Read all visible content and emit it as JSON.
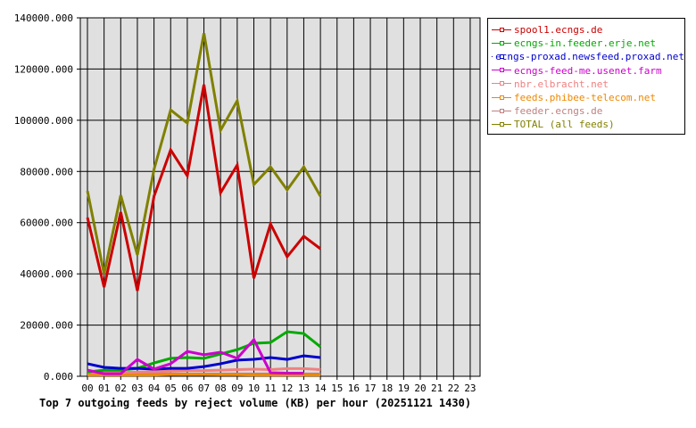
{
  "chart_data": {
    "type": "line",
    "title": "Top 7 outgoing feeds by reject volume (KB) per hour (20251121 1430)",
    "xlabel": "",
    "ylabel": "",
    "x": [
      "00",
      "01",
      "02",
      "03",
      "04",
      "05",
      "06",
      "07",
      "08",
      "09",
      "10",
      "11",
      "12",
      "13",
      "14",
      "15",
      "16",
      "17",
      "18",
      "19",
      "20",
      "21",
      "22",
      "23"
    ],
    "ylim": [
      0,
      140000
    ],
    "yticks": [
      "0.000",
      "20000.000",
      "40000.000",
      "60000.000",
      "80000.000",
      "100000.000",
      "120000.000",
      "140000.000"
    ],
    "grid": true,
    "legend_position": "right",
    "series": [
      {
        "name": "spool1.ecngs.de",
        "color": "#cc0000",
        "values": [
          62000,
          34800,
          64100,
          33400,
          70300,
          88400,
          78300,
          113900,
          71700,
          82500,
          38300,
          59500,
          46700,
          54700,
          49800
        ]
      },
      {
        "name": "ecngs-in.feeder.erje.net",
        "color": "#00aa00",
        "values": [
          1700,
          2400,
          2400,
          3100,
          5200,
          7000,
          7300,
          7000,
          8700,
          10400,
          12900,
          13200,
          17400,
          16700,
          11500
        ]
      },
      {
        "name": "ecngs-proxad.newsfeed.proxad.net",
        "color": "#0000cc",
        "values": [
          4900,
          3500,
          3100,
          3100,
          2800,
          3100,
          3100,
          3800,
          4900,
          6300,
          6600,
          7300,
          6600,
          8000,
          7300
        ]
      },
      {
        "name": "ecngs-feed-me.usenet.farm",
        "color": "#cc00cc",
        "values": [
          2400,
          1000,
          1000,
          6600,
          2800,
          4900,
          9700,
          8400,
          9400,
          7000,
          14300,
          1400,
          1200,
          1200,
          null
        ]
      },
      {
        "name": "nbr.elbracht.net",
        "color": "#f08080",
        "values": [
          1500,
          1500,
          1500,
          1600,
          1800,
          2000,
          2200,
          2200,
          2400,
          2600,
          2800,
          2600,
          3000,
          3000,
          2600
        ]
      },
      {
        "name": "feeds.phibee-telecom.net",
        "color": "#ee8800",
        "values": [
          500,
          500,
          500,
          500,
          500,
          700,
          800,
          700,
          600,
          600,
          500,
          500,
          500,
          500,
          500
        ]
      },
      {
        "name": "feeder.ecngs.de",
        "color": "#c08080",
        "values": [
          900,
          900,
          900,
          900,
          900,
          900,
          900,
          900,
          900,
          900,
          900,
          900,
          900,
          900,
          900
        ]
      },
      {
        "name": "TOTAL (all feeds)",
        "color": "#808000",
        "values": [
          72400,
          40000,
          70700,
          47400,
          80800,
          104000,
          98900,
          134000,
          96100,
          107600,
          74900,
          81800,
          72800,
          81800,
          70300
        ]
      }
    ]
  }
}
